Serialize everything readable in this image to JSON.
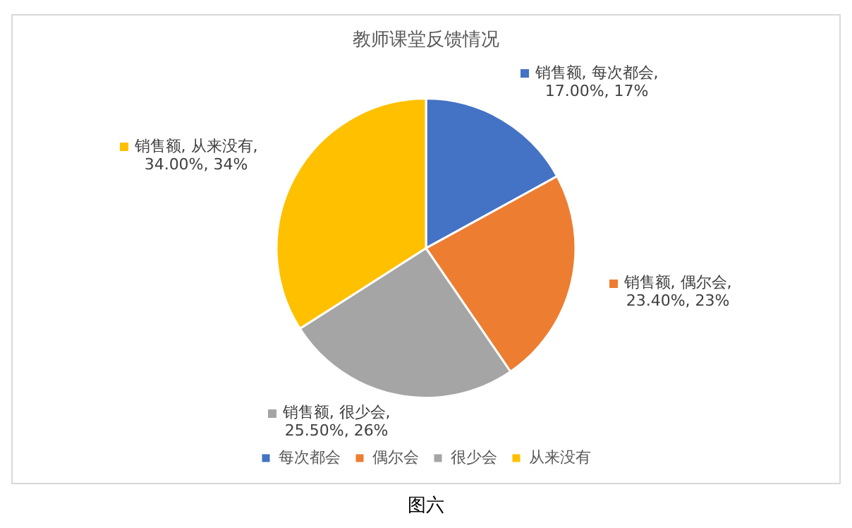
{
  "chart_data": {
    "type": "pie",
    "title": "教师课堂反馈情况",
    "categories": [
      "每次都会",
      "偶尔会",
      "很少会",
      "从来没有"
    ],
    "values": [
      17.0,
      23.4,
      25.5,
      34.0
    ],
    "colors": [
      "#4472c4",
      "#ed7d31",
      "#a5a5a5",
      "#ffc000"
    ],
    "value_labels": [
      "销售额, 每次都会, 17.00%, 17%",
      "销售额, 偶尔会, 23.40%, 23%",
      "销售额, 很少会, 25.50%, 26%",
      "销售额, 从来没有, 34.00%, 34%"
    ],
    "legend": "bottom",
    "annotations": [
      "图六"
    ]
  }
}
